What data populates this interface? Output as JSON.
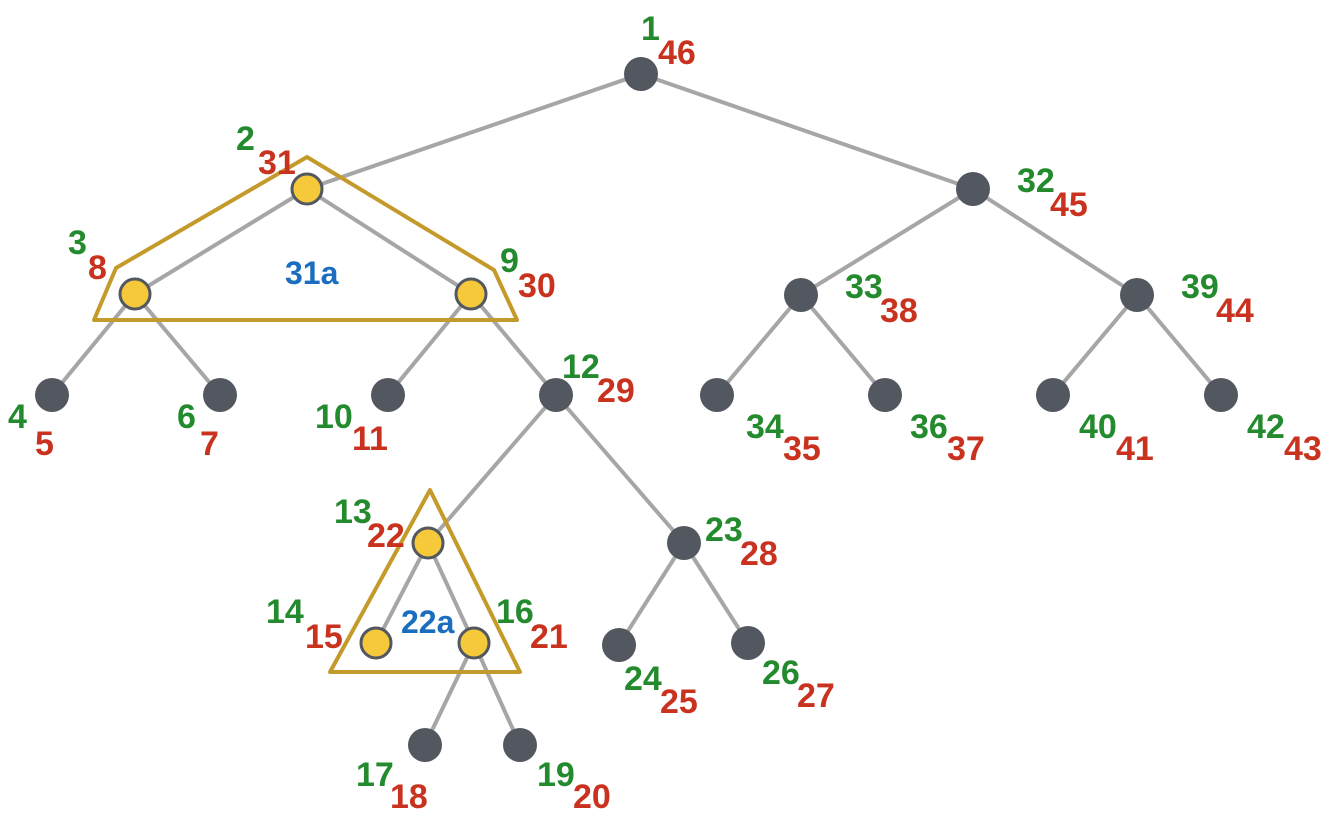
{
  "colors": {
    "pre_number": "#238a2e",
    "post_number": "#c8321e",
    "region_label": "#1a6dbf",
    "node_default": "#525760",
    "node_highlight": "#f5c93a",
    "edge": "#a6a6a6",
    "region_outline": "#c49a2b"
  },
  "nodes": [
    {
      "id": "n1",
      "pre": "1",
      "post": "46"
    },
    {
      "id": "n2",
      "pre": "2",
      "post": "31"
    },
    {
      "id": "n32",
      "pre": "32",
      "post": "45"
    },
    {
      "id": "n3",
      "pre": "3",
      "post": "8"
    },
    {
      "id": "n9",
      "pre": "9",
      "post": "30"
    },
    {
      "id": "n33",
      "pre": "33",
      "post": "38"
    },
    {
      "id": "n39",
      "pre": "39",
      "post": "44"
    },
    {
      "id": "n4",
      "pre": "4",
      "post": "5"
    },
    {
      "id": "n6",
      "pre": "6",
      "post": "7"
    },
    {
      "id": "n10",
      "pre": "10",
      "post": "11"
    },
    {
      "id": "n12",
      "pre": "12",
      "post": "29"
    },
    {
      "id": "n34",
      "pre": "34",
      "post": "35"
    },
    {
      "id": "n36",
      "pre": "36",
      "post": "37"
    },
    {
      "id": "n40",
      "pre": "40",
      "post": "41"
    },
    {
      "id": "n42",
      "pre": "42",
      "post": "43"
    },
    {
      "id": "n13",
      "pre": "13",
      "post": "22"
    },
    {
      "id": "n23",
      "pre": "23",
      "post": "28"
    },
    {
      "id": "n14",
      "pre": "14",
      "post": "15"
    },
    {
      "id": "n16",
      "pre": "16",
      "post": "21"
    },
    {
      "id": "n24",
      "pre": "24",
      "post": "25"
    },
    {
      "id": "n26",
      "pre": "26",
      "post": "27"
    },
    {
      "id": "n17",
      "pre": "17",
      "post": "18"
    },
    {
      "id": "n19",
      "pre": "19",
      "post": "20"
    }
  ],
  "edges": [
    [
      "n1",
      "n2"
    ],
    [
      "n1",
      "n32"
    ],
    [
      "n2",
      "n3"
    ],
    [
      "n2",
      "n9"
    ],
    [
      "n32",
      "n33"
    ],
    [
      "n32",
      "n39"
    ],
    [
      "n3",
      "n4"
    ],
    [
      "n3",
      "n6"
    ],
    [
      "n9",
      "n10"
    ],
    [
      "n9",
      "n12"
    ],
    [
      "n33",
      "n34"
    ],
    [
      "n33",
      "n36"
    ],
    [
      "n39",
      "n40"
    ],
    [
      "n39",
      "n42"
    ],
    [
      "n12",
      "n13"
    ],
    [
      "n12",
      "n23"
    ],
    [
      "n23",
      "n24"
    ],
    [
      "n23",
      "n26"
    ],
    [
      "n13",
      "n14"
    ],
    [
      "n13",
      "n16"
    ],
    [
      "n16",
      "n17"
    ],
    [
      "n16",
      "n19"
    ]
  ],
  "highlighted_nodes": [
    "n2",
    "n3",
    "n9",
    "n13",
    "n14",
    "n16"
  ],
  "regions": [
    {
      "id": "region-31a",
      "label": "31a"
    },
    {
      "id": "region-22a",
      "label": "22a"
    }
  ]
}
